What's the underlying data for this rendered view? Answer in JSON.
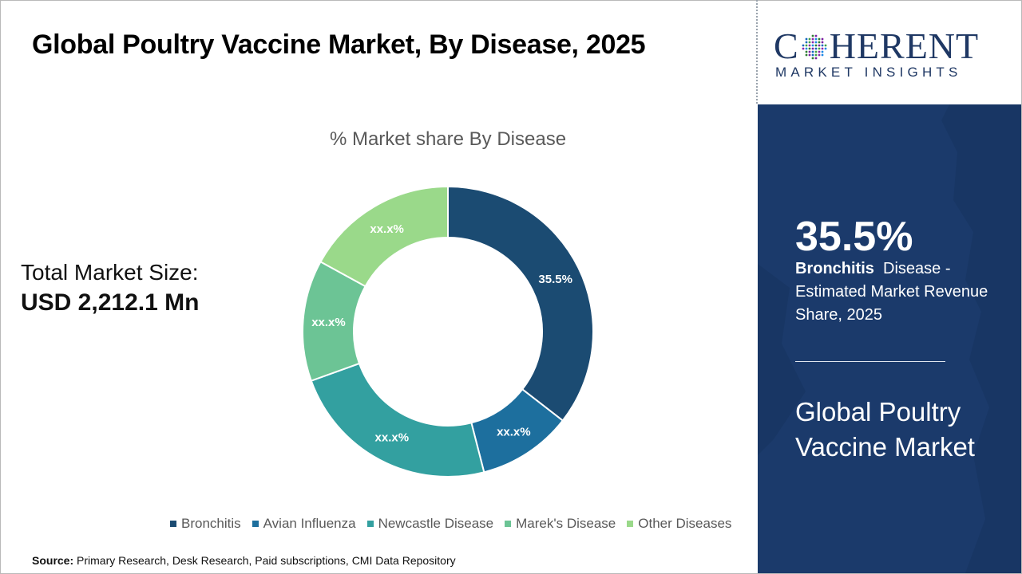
{
  "header": {
    "title": "Global Poultry Vaccine Market, By Disease, 2025"
  },
  "market_size": {
    "label": "Total Market Size:",
    "value": "USD 2,212.1 Mn"
  },
  "brand": {
    "name_prefix": "C",
    "name_suffix": "HERENT",
    "tagline": "MARKET INSIGHTS"
  },
  "highlight": {
    "value": "35.5%",
    "segment": "Bronchitis",
    "description": "Disease - Estimated Market Revenue Share, 2025",
    "market_name": "Global Poultry Vaccine Market"
  },
  "source": {
    "label": "Source:",
    "text": "Primary Research, Desk Research, Paid subscriptions, CMI Data Repository"
  },
  "colors": {
    "panel": "#1b3a6b",
    "brand": "#1f3864"
  },
  "chart_data": {
    "type": "pie",
    "donut": true,
    "title": "% Market share By Disease",
    "legend_position": "bottom",
    "slices": [
      {
        "name": "Bronchitis",
        "value": 35.5,
        "label": "35.5%",
        "color": "#1b4b72"
      },
      {
        "name": "Avian Influenza",
        "value": 10.5,
        "label": "xx.x%",
        "color": "#1d6f9e"
      },
      {
        "name": "Newcastle Disease",
        "value": 23.5,
        "label": "xx.x%",
        "color": "#33a0a0"
      },
      {
        "name": "Marek's Disease",
        "value": 13.5,
        "label": "xx.x%",
        "color": "#6cc495"
      },
      {
        "name": "Other Diseases",
        "value": 17.0,
        "label": "xx.x%",
        "color": "#9ad98a"
      }
    ]
  }
}
